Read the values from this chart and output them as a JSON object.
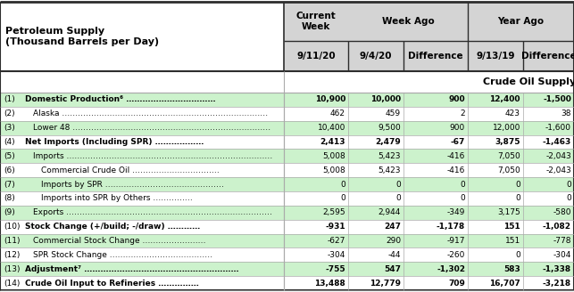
{
  "title": "Petroleum Supply\n(Thousand Barrels per Day)",
  "col_headers_top": [
    "Current\nWeek",
    "Week Ago",
    "Year Ago"
  ],
  "col_headers_bot": [
    "9/11/20",
    "9/4/20",
    "Difference",
    "9/13/19",
    "Difference"
  ],
  "section_label": "Crude Oil Supply",
  "rows": [
    {
      "num": "(1)",
      "label": "Domestic Production⁶ ……………………………",
      "bold": true,
      "indent": 0,
      "vals": [
        "10,900",
        "10,000",
        "900",
        "12,400",
        "-1,500"
      ]
    },
    {
      "num": "(2)",
      "label": "Alaska ……………………………………………………………………",
      "bold": false,
      "indent": 1,
      "vals": [
        "462",
        "459",
        "2",
        "423",
        "38"
      ]
    },
    {
      "num": "(3)",
      "label": "Lower 48 …………………………………………………………………",
      "bold": false,
      "indent": 1,
      "vals": [
        "10,400",
        "9,500",
        "900",
        "12,000",
        "-1,600"
      ]
    },
    {
      "num": "(4)",
      "label": "Net Imports (Including SPR) ………………",
      "bold": true,
      "indent": 0,
      "vals": [
        "2,413",
        "2,479",
        "-67",
        "3,875",
        "-1,463"
      ]
    },
    {
      "num": "(5)",
      "label": "Imports ……………………………………………………………………",
      "bold": false,
      "indent": 1,
      "vals": [
        "5,008",
        "5,423",
        "-416",
        "7,050",
        "-2,043"
      ]
    },
    {
      "num": "(6)",
      "label": "Commercial Crude Oil ……………………………",
      "bold": false,
      "indent": 2,
      "vals": [
        "5,008",
        "5,423",
        "-416",
        "7,050",
        "-2,043"
      ]
    },
    {
      "num": "(7)",
      "label": "Imports by SPR ………………………………………",
      "bold": false,
      "indent": 2,
      "vals": [
        "0",
        "0",
        "0",
        "0",
        "0"
      ]
    },
    {
      "num": "(8)",
      "label": "Imports into SPR by Others ……………",
      "bold": false,
      "indent": 2,
      "vals": [
        "0",
        "0",
        "0",
        "0",
        "0"
      ]
    },
    {
      "num": "(9)",
      "label": "Exports ……………………………………………………………………",
      "bold": false,
      "indent": 1,
      "vals": [
        "2,595",
        "2,944",
        "-349",
        "3,175",
        "-580"
      ]
    },
    {
      "num": "(10)",
      "label": "Stock Change (+/build; -/draw) …………",
      "bold": true,
      "indent": 0,
      "vals": [
        "-931",
        "247",
        "-1,178",
        "151",
        "-1,082"
      ]
    },
    {
      "num": "(11)",
      "label": "Commercial Stock Change ……………………",
      "bold": false,
      "indent": 1,
      "vals": [
        "-627",
        "290",
        "-917",
        "151",
        "-778"
      ]
    },
    {
      "num": "(12)",
      "label": "SPR Stock Change …………………………………",
      "bold": false,
      "indent": 1,
      "vals": [
        "-304",
        "-44",
        "-260",
        "0",
        "-304"
      ]
    },
    {
      "num": "(13)",
      "label": "Adjustment⁷ …………………………………………………",
      "bold": true,
      "indent": 0,
      "vals": [
        "-755",
        "547",
        "-1,302",
        "583",
        "-1,338"
      ]
    },
    {
      "num": "(14)",
      "label": "Crude Oil Input to Refineries ……………",
      "bold": true,
      "indent": 0,
      "vals": [
        "13,488",
        "12,779",
        "709",
        "16,707",
        "-3,218"
      ]
    }
  ],
  "header_bg_left": "#ffffff",
  "header_bg_right": "#d4d4d4",
  "row_bg_green": "#ccf2cc",
  "row_bg_white": "#ffffff",
  "section_bg": "#ffffff",
  "border_color_thick": "#2d2d2d",
  "border_color_thin": "#aaaaaa",
  "text_color": "#000000",
  "fig_bg": "#ffffff",
  "font_family": "Arial"
}
